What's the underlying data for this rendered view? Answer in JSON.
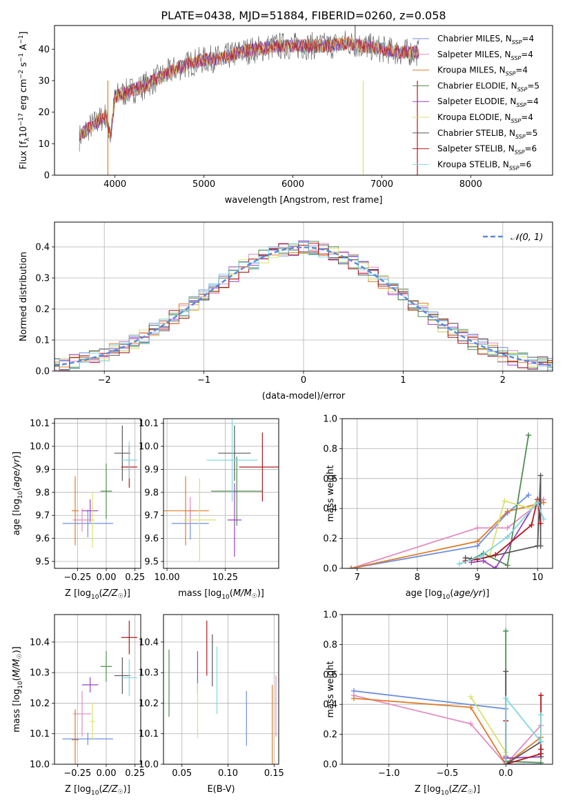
{
  "title": "PLATE=0438, MJD=51884, FIBERID=0260, z=0.058",
  "colors": [
    "#6a8fe0",
    "#e28ac0",
    "#e07b28",
    "#4e8c4e",
    "#9b3fc2",
    "#d7e36e",
    "#555555",
    "#b0161c",
    "#7fd6df"
  ],
  "legend_labels": [
    "Chabrier MILES, N",
    "Salpeter MILES, N",
    "Kroupa MILES, N",
    "Chabrier ELODIE, N",
    "Salpeter ELODIE, N",
    "Kroupa ELODIE, N",
    "Chabrier STELIB, N",
    "Salpeter STELIB, N",
    "Kroupa STELIB, N"
  ],
  "legend_sub": "SSP",
  "legend_nssp": [
    "=4",
    "=4",
    "=4",
    "=5",
    "=4",
    "=4",
    "=5",
    "=6",
    "=6"
  ],
  "hist_legend": "𝒩(0, 1)",
  "chart_data": [
    {
      "id": "spectrum",
      "type": "line",
      "xlabel": "wavelength [Angstrom, rest frame]",
      "ylabel": "Flux [f_λ 10^-17 erg cm^-2 s^-1 A^-1]",
      "xlim": [
        3320,
        8920
      ],
      "ylim": [
        0,
        47.5
      ],
      "xticks": [
        4000,
        5000,
        6000,
        7000,
        8000
      ],
      "yticks": [
        0,
        10,
        20,
        30,
        40
      ],
      "continuum": [
        [
          3600,
          12
        ],
        [
          3700,
          15
        ],
        [
          3800,
          17
        ],
        [
          3900,
          19
        ],
        [
          3950,
          12
        ],
        [
          4000,
          25
        ],
        [
          4100,
          26
        ],
        [
          4300,
          28
        ],
        [
          4500,
          31
        ],
        [
          4700,
          34
        ],
        [
          4900,
          36
        ],
        [
          5100,
          37
        ],
        [
          5200,
          37
        ],
        [
          5400,
          39
        ],
        [
          5600,
          40
        ],
        [
          5800,
          41
        ],
        [
          6000,
          41
        ],
        [
          6200,
          41
        ],
        [
          6400,
          41
        ],
        [
          6600,
          42
        ],
        [
          6800,
          41
        ],
        [
          7000,
          40
        ],
        [
          7200,
          39
        ],
        [
          7400,
          39
        ]
      ]
    },
    {
      "id": "residuals",
      "type": "histogram",
      "xlabel": "(data-model)/error",
      "ylabel": "Normed distribution",
      "xlim": [
        -2.5,
        2.5
      ],
      "ylim": [
        0,
        0.48
      ],
      "xticks": [
        -2,
        -1,
        0,
        1,
        2
      ],
      "yticks": [
        0.0,
        0.1,
        0.2,
        0.3,
        0.4
      ],
      "normal": {
        "mean": 0,
        "sigma": 1
      }
    },
    {
      "id": "age_vs_Z",
      "type": "scatter",
      "xlabel": "Z [log10(Z/Z☉)]",
      "ylabel": "age [log10(age/yr)]",
      "xlim": [
        -0.45,
        0.3
      ],
      "ylim": [
        9.47,
        10.12
      ],
      "xticks": [
        -0.25,
        0.0,
        0.25
      ],
      "yticks": [
        9.5,
        9.6,
        9.7,
        9.8,
        9.9,
        10.0,
        10.1
      ],
      "points": [
        {
          "x": -0.16,
          "y": 9.665,
          "xerr": 0.22,
          "yerr": 0.06
        },
        {
          "x": -0.21,
          "y": 9.68,
          "xerr": 0.08,
          "yerr": 0.05
        },
        {
          "x": -0.27,
          "y": 9.72,
          "xerr": 0.03,
          "yerr": 0.15
        },
        {
          "x": 0.0,
          "y": 9.805,
          "xerr": 0.05,
          "yerr": 0.12
        },
        {
          "x": -0.14,
          "y": 9.72,
          "xerr": 0.07,
          "yerr": 0.05
        },
        {
          "x": -0.12,
          "y": 9.68,
          "xerr": 0.02,
          "yerr": 0.12
        },
        {
          "x": 0.14,
          "y": 9.97,
          "xerr": 0.07,
          "yerr": 0.12
        },
        {
          "x": 0.2,
          "y": 9.91,
          "xerr": 0.07,
          "yerr": 0.09
        },
        {
          "x": 0.2,
          "y": 9.94,
          "xerr": 0.07,
          "yerr": 0.08
        }
      ]
    },
    {
      "id": "age_vs_mass",
      "type": "scatter",
      "xlabel": "mass [log10(M/M☉)]",
      "ylabel": "",
      "xlim": [
        9.985,
        10.48
      ],
      "ylim": [
        9.47,
        10.12
      ],
      "xticks": [
        10.0,
        10.25
      ],
      "yticks": [
        9.5,
        9.6,
        9.7,
        9.8,
        9.9,
        10.0,
        10.1
      ],
      "points": [
        {
          "x": 10.1,
          "y": 9.665,
          "xerr": 0.08,
          "yerr": 0.07
        },
        {
          "x": 10.1,
          "y": 9.72,
          "xerr": 0.02,
          "yerr": 0.06
        },
        {
          "x": 10.08,
          "y": 9.72,
          "xerr": 0.1,
          "yerr": 0.15
        },
        {
          "x": 10.3,
          "y": 9.805,
          "xerr": 0.11,
          "yerr": 0.15
        },
        {
          "x": 10.29,
          "y": 9.68,
          "xerr": 0.03,
          "yerr": 0.16
        },
        {
          "x": 10.14,
          "y": 9.68,
          "xerr": 0.07,
          "yerr": 0.18
        },
        {
          "x": 10.29,
          "y": 9.97,
          "xerr": 0.07,
          "yerr": 0.12
        },
        {
          "x": 10.41,
          "y": 9.91,
          "xerr": 0.1,
          "yerr": 0.15
        },
        {
          "x": 10.28,
          "y": 9.94,
          "xerr": 0.11,
          "yerr": 0.18
        }
      ]
    },
    {
      "id": "weight_vs_age",
      "type": "line",
      "xlabel": "age [log10(age/yr)]",
      "ylabel": "mass weight",
      "xlim": [
        6.75,
        10.25
      ],
      "ylim": [
        0,
        1.0
      ],
      "xticks": [
        7,
        8,
        9,
        10
      ],
      "yticks": [
        0.0,
        0.2,
        0.4,
        0.6,
        0.8,
        1.0
      ],
      "series": [
        {
          "x": [
            6.9,
            9.0,
            9.5,
            9.85
          ],
          "y": [
            0.0,
            0.15,
            0.37,
            0.49
          ]
        },
        {
          "x": [
            6.9,
            9.0,
            9.5,
            10.1
          ],
          "y": [
            0.0,
            0.27,
            0.27,
            0.46
          ]
        },
        {
          "x": [
            6.9,
            9.0,
            9.5,
            10.1
          ],
          "y": [
            0.0,
            0.18,
            0.38,
            0.44
          ]
        },
        {
          "x": [
            8.9,
            9.1,
            9.5,
            9.85
          ],
          "y": [
            0.06,
            0.1,
            0.02,
            0.89
          ]
        },
        {
          "x": [
            8.9,
            9.1,
            9.3,
            10.0
          ],
          "y": [
            0.04,
            0.05,
            0.0,
            0.46
          ]
        },
        {
          "x": [
            9.2,
            9.45,
            9.9,
            10.0
          ],
          "y": [
            0.08,
            0.45,
            0.4,
            0.46
          ]
        },
        {
          "x": [
            8.8,
            9.0,
            10.0,
            10.05,
            10.05
          ],
          "y": [
            0.07,
            0.06,
            0.15,
            0.62,
            0.15
          ]
        },
        {
          "x": [
            8.8,
            9.0,
            9.3,
            9.9,
            10.0,
            10.05
          ],
          "y": [
            0.05,
            0.06,
            0.09,
            0.29,
            0.46,
            0.3
          ]
        },
        {
          "x": [
            8.7,
            9.05,
            9.5,
            10.0,
            10.1
          ],
          "y": [
            0.03,
            0.08,
            0.21,
            0.44,
            0.33
          ]
        }
      ]
    },
    {
      "id": "mass_vs_Z",
      "type": "scatter",
      "xlabel": "Z [log10(Z/Z☉)]",
      "ylabel": "mass [log10(M/M☉)]",
      "xlim": [
        -0.45,
        0.3
      ],
      "ylim": [
        10.0,
        10.49
      ],
      "xticks": [
        -0.25,
        0.0,
        0.25
      ],
      "yticks": [
        10.0,
        10.1,
        10.2,
        10.3,
        10.4
      ],
      "points": [
        {
          "x": -0.16,
          "y": 10.083,
          "xerr": 0.22,
          "yerr": 0.02
        },
        {
          "x": -0.21,
          "y": 10.165,
          "xerr": 0.08,
          "yerr": 0.075
        },
        {
          "x": -0.27,
          "y": 10.08,
          "xerr": 0.03,
          "yerr": 0.1
        },
        {
          "x": 0.0,
          "y": 10.32,
          "xerr": 0.05,
          "yerr": 0.05
        },
        {
          "x": -0.14,
          "y": 10.26,
          "xerr": 0.07,
          "yerr": 0.025
        },
        {
          "x": -0.12,
          "y": 10.14,
          "xerr": 0.02,
          "yerr": 0.06
        },
        {
          "x": 0.14,
          "y": 10.29,
          "xerr": 0.07,
          "yerr": 0.06
        },
        {
          "x": 0.2,
          "y": 10.415,
          "xerr": 0.07,
          "yerr": 0.055
        },
        {
          "x": 0.2,
          "y": 10.283,
          "xerr": 0.07,
          "yerr": 0.06
        }
      ]
    },
    {
      "id": "mass_vs_ebv",
      "type": "scatter",
      "xlabel": "E(B-V)",
      "ylabel": "",
      "xlim": [
        0.03,
        0.155
      ],
      "ylim": [
        10.0,
        10.49
      ],
      "xticks": [
        0.05,
        0.1,
        0.15
      ],
      "yticks": [
        10.0,
        10.1,
        10.2,
        10.3,
        10.4
      ],
      "points": [
        {
          "x": 0.12,
          "y": 10.15,
          "xerr": 0,
          "yerr": 0.09
        },
        {
          "x": 0.152,
          "y": 10.19,
          "xerr": 0,
          "yerr": 0.1
        },
        {
          "x": 0.148,
          "y": 10.12,
          "xerr": 0,
          "yerr": 0.14
        },
        {
          "x": 0.036,
          "y": 10.265,
          "xerr": 0,
          "yerr": 0.11
        },
        {
          "x": 0.067,
          "y": 10.3,
          "xerr": 0,
          "yerr": 0.07
        },
        {
          "x": 0.067,
          "y": 10.175,
          "xerr": 0,
          "yerr": 0.09
        },
        {
          "x": 0.083,
          "y": 10.34,
          "xerr": 0,
          "yerr": 0.085
        },
        {
          "x": 0.077,
          "y": 10.38,
          "xerr": 0,
          "yerr": 0.09
        },
        {
          "x": 0.088,
          "y": 10.275,
          "xerr": 0,
          "yerr": 0.11
        }
      ]
    },
    {
      "id": "weight_vs_Z",
      "type": "line",
      "xlabel": "Z [log10(Z/Z☉)]",
      "ylabel": "mass weight",
      "xlim": [
        -1.4,
        0.4
      ],
      "ylim": [
        0,
        1.0
      ],
      "xticks": [
        -1.0,
        -0.5,
        0.0
      ],
      "yticks": [
        0.0,
        0.2,
        0.4,
        0.6,
        0.8,
        1.0
      ],
      "series": [
        {
          "x": [
            -1.3,
            0.0,
            0.0,
            0.3
          ],
          "y": [
            0.49,
            0.37,
            0.0,
            0.0
          ]
        },
        {
          "x": [
            -1.3,
            -0.3,
            0.0,
            0.3
          ],
          "y": [
            0.46,
            0.27,
            0.0,
            0.26
          ]
        },
        {
          "x": [
            -1.3,
            -0.3,
            0.0,
            0.3
          ],
          "y": [
            0.44,
            0.38,
            0.0,
            0.18
          ]
        },
        {
          "x": [
            0.0,
            0.0,
            0.3
          ],
          "y": [
            0.89,
            0.02,
            0.01
          ]
        },
        {
          "x": [
            0.0,
            0.0,
            0.3
          ],
          "y": [
            0.05,
            0.04,
            0.05
          ]
        },
        {
          "x": [
            -0.3,
            0.0,
            0.0
          ],
          "y": [
            0.45,
            0.08,
            0.06
          ]
        },
        {
          "x": [
            0.0,
            0.0,
            0.3,
            0.3
          ],
          "y": [
            0.62,
            0.0,
            0.15,
            0.05
          ]
        },
        {
          "x": [
            0.0,
            0.0,
            0.3,
            0.3,
            0.3
          ],
          "y": [
            0.29,
            0.0,
            0.07,
            0.46,
            0.1
          ]
        },
        {
          "x": [
            0.0,
            0.0,
            0.3,
            0.3
          ],
          "y": [
            0.0,
            0.44,
            0.15,
            0.33
          ]
        }
      ]
    }
  ]
}
